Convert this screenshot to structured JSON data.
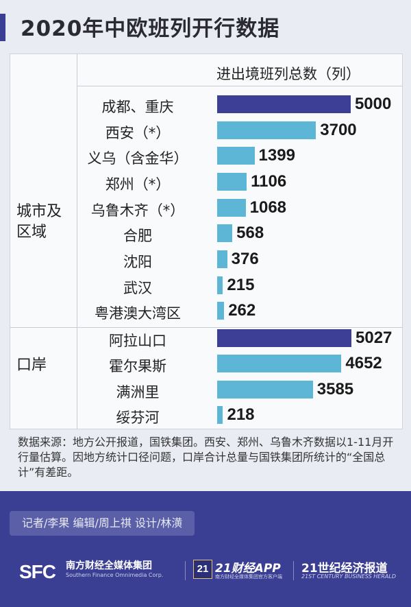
{
  "title": "2020年中欧班列开行数据",
  "column_header": "进出境班列总数（列）",
  "groups": {
    "city": "城市及区域",
    "port": "口岸"
  },
  "colors": {
    "highlight": "#3c3f95",
    "normal": "#5db6d5",
    "footer": "#3a3f93"
  },
  "chart_data": {
    "type": "bar",
    "orientation": "horizontal",
    "ylabel": "进出境班列总数（列）",
    "groups": [
      {
        "name": "城市及区域",
        "categories": [
          "成都、重庆",
          "西安（*）",
          "义乌（含金华）",
          "郑州（*）",
          "乌鲁木齐（*）",
          "合肥",
          "沈阳",
          "武汉",
          "粤港澳大湾区"
        ],
        "values": [
          5000,
          3700,
          1399,
          1106,
          1068,
          568,
          376,
          215,
          262
        ],
        "highlight": [
          true,
          false,
          false,
          false,
          false,
          false,
          false,
          false,
          false
        ]
      },
      {
        "name": "口岸",
        "categories": [
          "阿拉山口",
          "霍尔果斯",
          "满洲里",
          "绥芬河"
        ],
        "values": [
          5027,
          4652,
          3585,
          218
        ],
        "highlight": [
          true,
          false,
          false,
          false
        ]
      }
    ],
    "xlim": [
      0,
      5100
    ],
    "grid": false
  },
  "note": "数据来源：地方公开报道，国铁集团。西安、郑州、乌鲁木齐数据以1-11月开行量估算。因地方统计口径问题，口岸合计总量与国铁集团所统计的“全国总计”有差距。",
  "credits": "记者/李果 编辑/周上祺 设计/林潢",
  "logos": {
    "sfc": "SFC",
    "sfc_cn": "南方财经全媒体集团",
    "sfc_en": "Southern Finance Omnimedia Corp.",
    "app_badge": "21",
    "app_name": "21财经APP",
    "app_sub": "南方财经全媒体集团官方客户端",
    "herald_cn": "21世纪经济报道",
    "herald_en": "21ST CENTURY BUSINESS HERALD"
  }
}
